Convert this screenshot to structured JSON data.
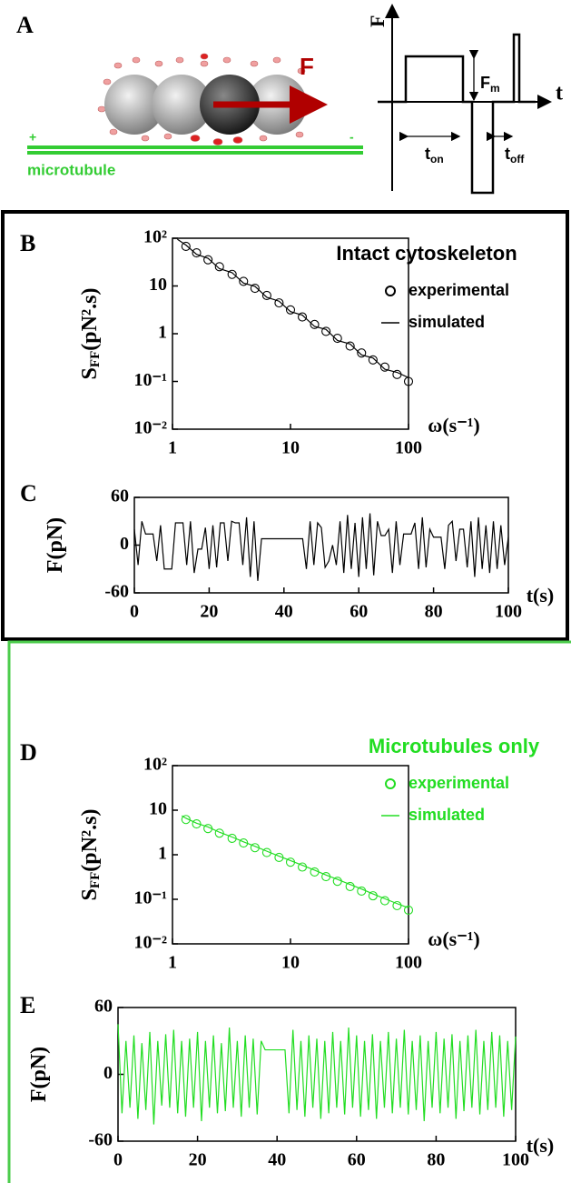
{
  "panel_a": {
    "label": "A",
    "force": "F",
    "plus": "+",
    "minus": "-",
    "track": "microtubule",
    "axis_force": "F",
    "axis_time": "t",
    "amplitude": {
      "main": "F",
      "sub": "m"
    },
    "on_time": {
      "main": "t",
      "sub": "on"
    },
    "off_time": {
      "main": "t",
      "sub": "off"
    }
  },
  "chart_data": [
    {
      "type": "scatter",
      "panel_label": "B",
      "legend_title": "Intact cytoskeleton",
      "log_x": true,
      "log_y": true,
      "x_label": "ω(s⁻¹)",
      "y_label": {
        "main": "S",
        "sub": "FF",
        "rest": "(pN².s)"
      },
      "xlim": [
        1,
        100
      ],
      "ylim": [
        0.01,
        100
      ],
      "xticks": [
        1,
        10,
        100
      ],
      "yticks": [
        {
          "value": 100,
          "label": "10²"
        },
        10,
        1,
        {
          "value": 0.1,
          "label": "10⁻¹"
        },
        {
          "value": 0.01,
          "label": "10⁻²"
        }
      ],
      "series": [
        {
          "name": "experimental",
          "color": "#000000",
          "style": "markers",
          "x": [
            1.3,
            1.6,
            2,
            2.5,
            3.2,
            4,
            5,
            6.3,
            8,
            10,
            12.6,
            16,
            20,
            25,
            32,
            40,
            50,
            63,
            80,
            100
          ],
          "values": [
            67.5,
            49.4,
            35.4,
            25.3,
            17.5,
            12.5,
            8.94,
            6.32,
            4.42,
            3.16,
            2.24,
            1.56,
            1.12,
            0.8,
            0.552,
            0.395,
            0.283,
            0.2,
            0.14,
            0.1
          ]
        },
        {
          "name": "simulated",
          "color": "#000000",
          "style": "line",
          "x": [
            1.1,
            1.3,
            1.6,
            2,
            2.5,
            3.2,
            4,
            5,
            6.3,
            8,
            10,
            12.6,
            16,
            20,
            25,
            32,
            40,
            50,
            63,
            80,
            100
          ],
          "values": [
            95,
            72,
            46,
            38,
            23,
            19,
            11.5,
            9.8,
            5.8,
            4.8,
            2.9,
            2.45,
            1.42,
            1.23,
            0.72,
            0.61,
            0.36,
            0.31,
            0.18,
            0.155,
            0.12
          ]
        }
      ]
    },
    {
      "type": "line",
      "panel_label": "C",
      "x_label": "t(s)",
      "y_label": {
        "main": "F(pN)"
      },
      "xlim": [
        0,
        100
      ],
      "ylim": [
        -60,
        60
      ],
      "xticks": [
        0,
        20,
        40,
        60,
        80,
        100
      ],
      "yticks": [
        60,
        0,
        -60
      ],
      "series": [
        {
          "color": "#000000",
          "x": [
            0,
            1,
            2,
            3,
            4,
            5,
            6,
            7,
            8,
            9,
            10,
            11,
            12,
            13,
            14,
            15,
            16,
            17,
            18,
            19,
            20,
            21,
            22,
            23,
            24,
            25,
            26,
            27,
            28,
            29,
            30,
            31,
            32,
            33,
            34,
            35,
            36,
            37,
            38,
            39,
            40,
            41,
            42,
            43,
            44,
            45,
            46,
            47,
            48,
            49,
            50,
            51,
            52,
            53,
            54,
            55,
            56,
            57,
            58,
            59,
            60,
            61,
            62,
            63,
            64,
            65,
            66,
            67,
            68,
            69,
            70,
            71,
            72,
            73,
            74,
            75,
            76,
            77,
            78,
            79,
            80,
            81,
            82,
            83,
            84,
            85,
            86,
            87,
            88,
            89,
            90,
            91,
            92,
            93,
            94,
            95,
            96,
            97,
            98,
            99,
            100
          ],
          "values": [
            20,
            -25,
            30,
            14,
            14,
            14,
            -20,
            25,
            -30,
            -30,
            -30,
            28,
            28,
            28,
            -25,
            30,
            -35,
            -5,
            -5,
            22,
            -30,
            25,
            -28,
            28,
            28,
            -20,
            30,
            28,
            28,
            -25,
            35,
            -40,
            30,
            -45,
            8,
            8,
            8,
            8,
            8,
            8,
            8,
            8,
            8,
            8,
            8,
            8,
            -30,
            30,
            -25,
            28,
            22,
            -28,
            -20,
            0,
            -25,
            30,
            -35,
            38,
            -30,
            28,
            -40,
            35,
            -30,
            40,
            -38,
            30,
            12,
            12,
            20,
            -35,
            30,
            -25,
            14,
            14,
            14,
            28,
            -30,
            35,
            -28,
            20,
            10,
            10,
            10,
            -30,
            25,
            30,
            -20,
            20,
            20,
            -28,
            30,
            -40,
            35,
            -30,
            25,
            -35,
            30,
            -30,
            25,
            -25,
            10
          ]
        }
      ]
    },
    {
      "type": "scatter",
      "panel_label": "D",
      "legend_title": "Microtubules only",
      "log_x": true,
      "log_y": true,
      "x_label": "ω(s⁻¹)",
      "y_label": {
        "main": "S",
        "sub": "FF",
        "rest": "(pN².s)"
      },
      "xlim": [
        1,
        100
      ],
      "ylim": [
        0.01,
        100
      ],
      "xticks": [
        1,
        10,
        100
      ],
      "yticks": [
        {
          "value": 100,
          "label": "10²"
        },
        10,
        1,
        {
          "value": 0.1,
          "label": "10⁻¹"
        },
        {
          "value": 0.01,
          "label": "10⁻²"
        }
      ],
      "series": [
        {
          "name": "experimental",
          "color": "#22dd22",
          "style": "markers",
          "x": [
            1.3,
            1.6,
            2,
            2.5,
            3.2,
            4,
            5,
            6.3,
            8,
            10,
            12.6,
            16,
            20,
            25,
            32,
            40,
            50,
            63,
            80,
            100
          ],
          "values": [
            6.18,
            4.93,
            3.88,
            3.05,
            2.34,
            1.84,
            1.44,
            1.12,
            0.87,
            0.68,
            0.53,
            0.41,
            0.323,
            0.254,
            0.194,
            0.153,
            0.12,
            0.093,
            0.072,
            0.057
          ]
        },
        {
          "name": "simulated",
          "color": "#22dd22",
          "style": "line",
          "x": [
            1.2,
            1.3,
            1.6,
            2,
            2.5,
            3.2,
            4,
            5,
            6.3,
            8,
            10,
            12.6,
            16,
            20,
            25,
            32,
            40,
            50,
            63,
            80,
            100
          ],
          "values": [
            7.5,
            6.6,
            5.1,
            4.2,
            3.2,
            2.5,
            1.95,
            1.55,
            1.2,
            0.93,
            0.74,
            0.58,
            0.45,
            0.35,
            0.28,
            0.215,
            0.17,
            0.132,
            0.103,
            0.08,
            0.064
          ]
        }
      ]
    },
    {
      "type": "line",
      "panel_label": "E",
      "x_label": "t(s)",
      "y_label": {
        "main": "F(pN)"
      },
      "xlim": [
        0,
        100
      ],
      "ylim": [
        -60,
        60
      ],
      "xticks": [
        0,
        20,
        40,
        60,
        80,
        100
      ],
      "yticks": [
        60,
        0,
        -60
      ],
      "series": [
        {
          "color": "#22dd22",
          "x": [
            0,
            1,
            2,
            3,
            4,
            5,
            6,
            7,
            8,
            9,
            10,
            11,
            12,
            13,
            14,
            15,
            16,
            17,
            18,
            19,
            20,
            21,
            22,
            23,
            24,
            25,
            26,
            27,
            28,
            29,
            30,
            31,
            32,
            33,
            34,
            35,
            36,
            37,
            38,
            39,
            40,
            41,
            42,
            43,
            44,
            45,
            46,
            47,
            48,
            49,
            50,
            51,
            52,
            53,
            54,
            55,
            56,
            57,
            58,
            59,
            60,
            61,
            62,
            63,
            64,
            65,
            66,
            67,
            68,
            69,
            70,
            71,
            72,
            73,
            74,
            75,
            76,
            77,
            78,
            79,
            80,
            81,
            82,
            83,
            84,
            85,
            86,
            87,
            88,
            89,
            90,
            91,
            92,
            93,
            94,
            95,
            96,
            97,
            98,
            99,
            100
          ],
          "values": [
            45,
            -35,
            30,
            -30,
            35,
            -40,
            28,
            -32,
            38,
            -45,
            30,
            -28,
            36,
            -30,
            40,
            -35,
            30,
            -38,
            32,
            -30,
            38,
            -42,
            30,
            -30,
            35,
            -35,
            28,
            -33,
            42,
            -30,
            30,
            -38,
            35,
            -30,
            32,
            -36,
            30,
            22,
            22,
            22,
            22,
            22,
            22,
            -35,
            40,
            -32,
            30,
            -38,
            35,
            -30,
            32,
            -40,
            30,
            -35,
            38,
            -30,
            30,
            -36,
            42,
            -30,
            35,
            -38,
            30,
            -32,
            36,
            -40,
            30,
            -30,
            38,
            -35,
            32,
            -30,
            40,
            -36,
            30,
            -32,
            35,
            -42,
            30,
            -30,
            38,
            -35,
            32,
            -30,
            36,
            -40,
            30,
            -33,
            35,
            -30,
            40,
            -36,
            30,
            -32,
            38,
            -30,
            35,
            -38,
            30,
            -32,
            34
          ]
        }
      ]
    }
  ]
}
